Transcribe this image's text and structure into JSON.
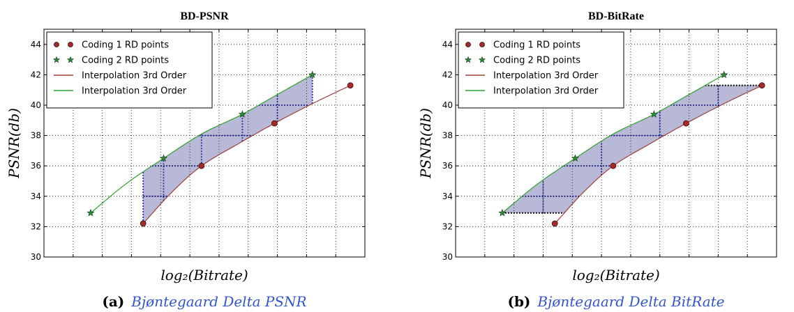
{
  "chart_data": [
    {
      "type": "line",
      "title": "BD-PSNR",
      "xlabel": "log₂(Bitrate)",
      "ylabel": "PSNR(db)",
      "ylim": [
        30,
        45
      ],
      "xlim": [
        0,
        11
      ],
      "yticks": [
        "30",
        "32",
        "34",
        "36",
        "38",
        "40",
        "42",
        "44"
      ],
      "grid": true,
      "legend_position": "top-left",
      "series": [
        {
          "name": "Coding 1 RD points",
          "kind": "points",
          "marker": "circle",
          "color": "#a52a2a",
          "x": [
            3.4,
            5.4,
            7.9,
            10.5
          ],
          "y": [
            32.2,
            36.0,
            38.8,
            41.3
          ]
        },
        {
          "name": "Coding 2 RD points",
          "kind": "points",
          "marker": "star",
          "color": "#2e8b3a",
          "x": [
            1.6,
            4.1,
            6.8,
            9.2
          ],
          "y": [
            32.9,
            36.5,
            39.4,
            42.0
          ]
        },
        {
          "name": "Interpolation 3rd Order",
          "kind": "line",
          "color": "#a0403a",
          "x": [
            3.4,
            4.4,
            5.4,
            6.7,
            7.9,
            9.2,
            10.5
          ],
          "y": [
            32.2,
            34.3,
            36.0,
            37.5,
            38.8,
            40.1,
            41.3
          ]
        },
        {
          "name": "Interpolation 3rd Order",
          "kind": "line",
          "color": "#2ca02c",
          "x": [
            1.6,
            2.8,
            4.1,
            5.4,
            6.8,
            8.0,
            9.2
          ],
          "y": [
            32.9,
            34.8,
            36.5,
            38.1,
            39.4,
            40.7,
            42.0
          ]
        }
      ],
      "shaded_region": {
        "type": "vertical",
        "x_range": [
          3.4,
          9.2
        ],
        "color": "#7b7fb5"
      },
      "caption": {
        "label": "(a)",
        "text": "Bjøntegaard Delta PSNR"
      }
    },
    {
      "type": "line",
      "title": "BD-BitRate",
      "xlabel": "log₂(Bitrate)",
      "ylabel": "PSNR(db)",
      "ylim": [
        30,
        45
      ],
      "xlim": [
        0,
        11
      ],
      "yticks": [
        "30",
        "32",
        "34",
        "36",
        "38",
        "40",
        "42",
        "44"
      ],
      "grid": true,
      "legend_position": "top-left",
      "series": [
        {
          "name": "Coding 1 RD points",
          "kind": "points",
          "marker": "circle",
          "color": "#a52a2a",
          "x": [
            3.4,
            5.4,
            7.9,
            10.5
          ],
          "y": [
            32.2,
            36.0,
            38.8,
            41.3
          ]
        },
        {
          "name": "Coding 2 RD points",
          "kind": "points",
          "marker": "star",
          "color": "#2e8b3a",
          "x": [
            1.6,
            4.1,
            6.8,
            9.2
          ],
          "y": [
            32.9,
            36.5,
            39.4,
            42.0
          ]
        },
        {
          "name": "Interpolation 3rd Order",
          "kind": "line",
          "color": "#a0403a",
          "x": [
            3.4,
            4.4,
            5.4,
            6.7,
            7.9,
            9.2,
            10.5
          ],
          "y": [
            32.2,
            34.3,
            36.0,
            37.5,
            38.8,
            40.1,
            41.3
          ]
        },
        {
          "name": "Interpolation 3rd Order",
          "kind": "line",
          "color": "#2ca02c",
          "x": [
            1.6,
            2.8,
            4.1,
            5.4,
            6.8,
            8.0,
            9.2
          ],
          "y": [
            32.9,
            34.8,
            36.5,
            38.1,
            39.4,
            40.7,
            42.0
          ]
        }
      ],
      "shaded_region": {
        "type": "horizontal",
        "y_range": [
          32.9,
          41.3
        ],
        "color": "#7b7fb5"
      },
      "caption": {
        "label": "(b)",
        "text": "Bjøntegaard Delta BitRate"
      }
    }
  ]
}
